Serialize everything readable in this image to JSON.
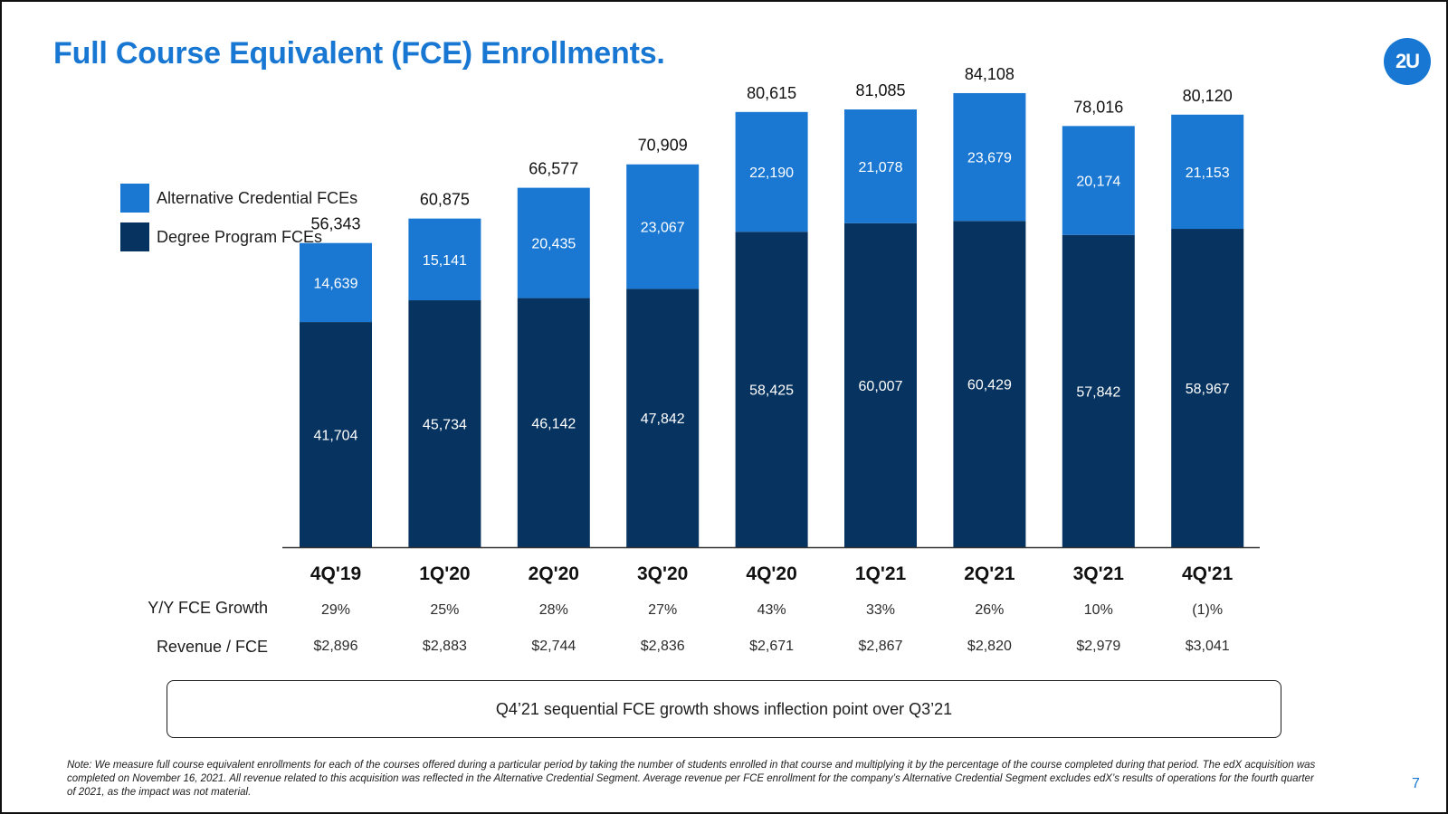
{
  "slide": {
    "title": "Full Course Equivalent (FCE) Enrollments.",
    "logo_text": "2U",
    "page_number": "7",
    "callout": "Q4’21 sequential FCE growth shows inflection point over Q3’21",
    "note": "Note: We measure full course equivalent enrollments for each of the courses offered during a particular period by taking the number of students enrolled in that course and multiplying it by the percentage of the course completed during that period. The edX acquisition was completed on November 16, 2021. All revenue related to this acquisition was reflected in the Alternative Credential Segment. Average revenue per FCE enrollment for the company’s Alternative Credential Segment excludes edX’s results of operations for the fourth quarter of 2021, as the impact was not material."
  },
  "colors": {
    "title": "#1877d2",
    "alt_credential": "#1a78d3",
    "degree_program": "#073360",
    "axis": "#333333"
  },
  "metrics": {
    "yoy_label": "Y/Y FCE Growth",
    "revenue_label": "Revenue / FCE",
    "yoy": [
      "29%",
      "25%",
      "28%",
      "27%",
      "43%",
      "33%",
      "26%",
      "10%",
      "(1)%"
    ],
    "revenue": [
      "$2,896",
      "$2,883",
      "$2,744",
      "$2,836",
      "$2,671",
      "$2,867",
      "$2,820",
      "$2,979",
      "$3,041"
    ]
  },
  "chart_data": {
    "type": "bar",
    "stacked": true,
    "categories": [
      "4Q'19",
      "1Q'20",
      "2Q'20",
      "3Q'20",
      "4Q'20",
      "1Q'21",
      "2Q'21",
      "3Q'21",
      "4Q'21"
    ],
    "series": [
      {
        "name": "Degree Program FCEs",
        "values": [
          41704,
          45734,
          46142,
          47842,
          58425,
          60007,
          60429,
          57842,
          58967
        ],
        "labels": [
          "41,704",
          "45,734",
          "46,142",
          "47,842",
          "58,425",
          "60,007",
          "60,429",
          "57,842",
          "58,967"
        ]
      },
      {
        "name": "Alternative Credential FCEs",
        "values": [
          14639,
          15141,
          20435,
          23067,
          22190,
          21078,
          23679,
          20174,
          21153
        ],
        "labels": [
          "14,639",
          "15,141",
          "20,435",
          "23,067",
          "22,190",
          "21,078",
          "23,679",
          "20,174",
          "21,153"
        ]
      }
    ],
    "totals": [
      "56,343",
      "60,875",
      "66,577",
      "70,909",
      "80,615",
      "81,085",
      "84,108",
      "78,016",
      "80,120"
    ],
    "ylim": [
      0,
      90000
    ],
    "legend": "top-left",
    "grid": false
  }
}
